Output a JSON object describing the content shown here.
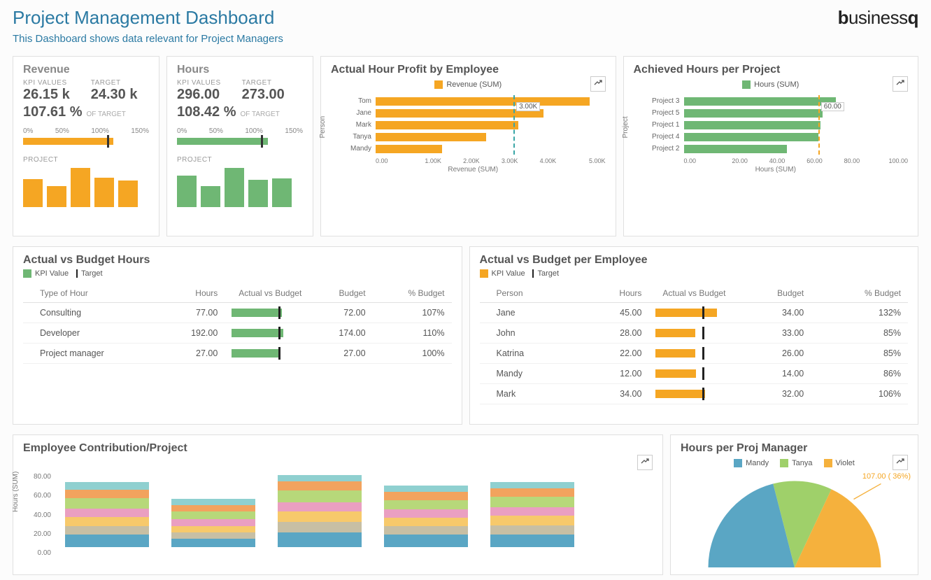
{
  "header": {
    "title": "Project Management Dashboard",
    "subtitle": "This Dashboard shows data relevant for Project Managers",
    "logo_parts": {
      "b": "b",
      "mid": "usiness",
      "q": "q"
    }
  },
  "colors": {
    "orange": "#f5a623",
    "green": "#6fb774",
    "teal": "#3aa6a6",
    "dark": "#333333",
    "grid": "#e5e5e5",
    "text_muted": "#888888"
  },
  "revenue_kpi": {
    "title": "Revenue",
    "labels": {
      "kpi": "KPI VALUES",
      "target": "TARGET",
      "oftarget": "OF TARGET",
      "sub": "PROJECT"
    },
    "value": "26.15 k",
    "target": "24.30 k",
    "percent": "107.61 %",
    "gauge": {
      "ticks": [
        "0%",
        "50%",
        "100%",
        "150%"
      ],
      "fill_pct": 71.7,
      "mark_pct": 66.7,
      "fill_color": "#f5a623"
    },
    "mini": {
      "values": [
        40,
        30,
        56,
        42,
        38
      ],
      "color": "#f5a623"
    }
  },
  "hours_kpi": {
    "title": "Hours",
    "labels": {
      "kpi": "KPI VALUES",
      "target": "TARGET",
      "oftarget": "OF TARGET",
      "sub": "PROJECT"
    },
    "value": "296.00",
    "target": "273.00",
    "percent": "108.42 %",
    "gauge": {
      "ticks": [
        "0%",
        "50%",
        "100%",
        "150%"
      ],
      "fill_pct": 72.3,
      "mark_pct": 66.7,
      "fill_color": "#6fb774"
    },
    "mini": {
      "values": [
        42,
        28,
        52,
        36,
        38
      ],
      "color": "#6fb774"
    }
  },
  "profit_by_employee": {
    "title": "Actual Hour Profit by Employee",
    "legend": "Revenue (SUM)",
    "y_label": "Person",
    "x_label": "Revenue (SUM)",
    "x_ticks": [
      "0.00",
      "1.00K",
      "2.00K",
      "3.00K",
      "4.00K",
      "5.00K"
    ],
    "x_max": 5000,
    "target_value": 3000,
    "target_label": "3.00K",
    "bar_color": "#f5a623",
    "target_color": "#3aa6a6",
    "rows": [
      {
        "label": "Tom",
        "value": 4650
      },
      {
        "label": "Jane",
        "value": 3650
      },
      {
        "label": "Mark",
        "value": 3100
      },
      {
        "label": "Tanya",
        "value": 2400
      },
      {
        "label": "Mandy",
        "value": 1450
      }
    ]
  },
  "hours_per_project": {
    "title": "Achieved Hours per Project",
    "legend": "Hours (SUM)",
    "y_label": "Project",
    "x_label": "Hours (SUM)",
    "x_ticks": [
      "0.00",
      "20.00",
      "40.00",
      "60.00",
      "80.00",
      "100.00"
    ],
    "x_max": 100,
    "target_value": 60,
    "target_label": "60.00",
    "bar_color": "#6fb774",
    "target_color": "#f5a623",
    "rows": [
      {
        "label": "Project 3",
        "value": 68
      },
      {
        "label": "Project 5",
        "value": 62
      },
      {
        "label": "Project 1",
        "value": 61
      },
      {
        "label": "Project 4",
        "value": 60
      },
      {
        "label": "Project 2",
        "value": 46
      }
    ]
  },
  "avb_hours": {
    "title": "Actual vs Budget Hours",
    "legend_kpi": "KPI Value",
    "legend_target": "Target",
    "bar_color": "#6fb774",
    "columns": [
      "Type of Hour",
      "Hours",
      "Actual vs Budget",
      "Budget",
      "% Budget"
    ],
    "max_pct": 150,
    "rows": [
      {
        "label": "Consulting",
        "hours": "77.00",
        "pct": 107,
        "budget": "72.00",
        "pct_label": "107%"
      },
      {
        "label": "Developer",
        "hours": "192.00",
        "pct": 110,
        "budget": "174.00",
        "pct_label": "110%"
      },
      {
        "label": "Project manager",
        "hours": "27.00",
        "pct": 100,
        "budget": "27.00",
        "pct_label": "100%"
      }
    ]
  },
  "avb_employee": {
    "title": "Actual vs Budget per Employee",
    "legend_kpi": "KPI Value",
    "legend_target": "Target",
    "bar_color": "#f5a623",
    "columns": [
      "Person",
      "Hours",
      "Actual vs Budget",
      "Budget",
      "% Budget"
    ],
    "max_pct": 150,
    "rows": [
      {
        "label": "Jane",
        "hours": "45.00",
        "pct": 132,
        "budget": "34.00",
        "pct_label": "132%"
      },
      {
        "label": "John",
        "hours": "28.00",
        "pct": 85,
        "budget": "33.00",
        "pct_label": "85%"
      },
      {
        "label": "Katrina",
        "hours": "22.00",
        "pct": 85,
        "budget": "26.00",
        "pct_label": "85%"
      },
      {
        "label": "Mandy",
        "hours": "12.00",
        "pct": 86,
        "budget": "14.00",
        "pct_label": "86%"
      },
      {
        "label": "Mark",
        "hours": "34.00",
        "pct": 106,
        "budget": "32.00",
        "pct_label": "106%"
      }
    ]
  },
  "contribution": {
    "title": "Employee Contribution/Project",
    "y_label": "Hours (SUM)",
    "y_ticks": [
      "80.00",
      "60.00",
      "40.00",
      "20.00",
      "0.00"
    ],
    "y_max": 80,
    "seg_colors": [
      "#5aa6c4",
      "#c7bfa4",
      "#f7c96b",
      "#ea9fc1",
      "#b7d87a",
      "#f2a35e",
      "#8fd0d0"
    ],
    "stacks": [
      [
        12,
        8,
        9,
        8,
        10,
        8,
        7
      ],
      [
        8,
        6,
        6,
        7,
        7,
        6,
        6
      ],
      [
        14,
        10,
        10,
        9,
        11,
        9,
        6
      ],
      [
        12,
        8,
        8,
        8,
        9,
        8,
        6
      ],
      [
        12,
        9,
        9,
        8,
        10,
        8,
        6
      ]
    ]
  },
  "pie": {
    "title": "Hours per Proj Manager",
    "legend": [
      {
        "label": "Mandy",
        "color": "#5aa6c4"
      },
      {
        "label": "Tanya",
        "color": "#9fd06a"
      },
      {
        "label": "Violet",
        "color": "#f5b13d"
      }
    ],
    "slices": [
      {
        "label": "Mandy",
        "pct": 42,
        "color": "#5aa6c4"
      },
      {
        "label": "Tanya",
        "pct": 22,
        "color": "#9fd06a"
      },
      {
        "label": "Violet",
        "pct": 36,
        "color": "#f5b13d"
      }
    ],
    "callout": "107.00 ( 36%)"
  }
}
